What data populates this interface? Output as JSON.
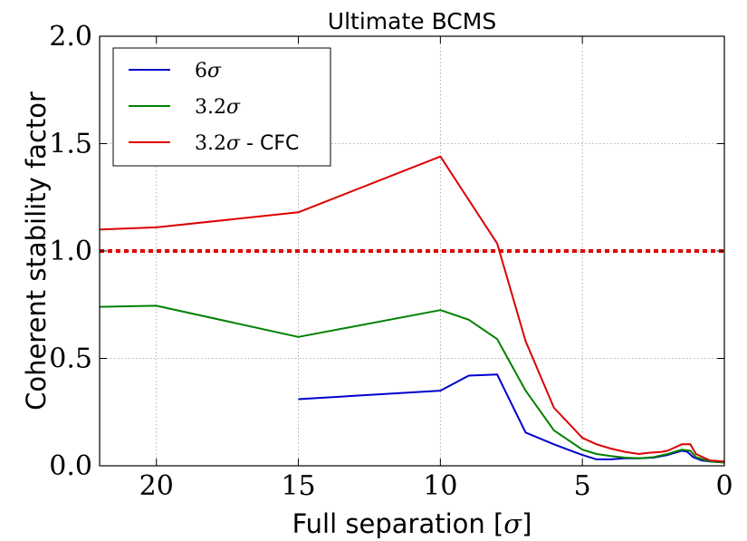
{
  "chart_data": {
    "type": "line",
    "title": "Ultimate BCMS",
    "xlabel": "Full separation [σ]",
    "ylabel": "Coherent stability factor",
    "xlim": [
      22,
      0
    ],
    "ylim": [
      0.0,
      2.0
    ],
    "x_reversed": true,
    "grid": true,
    "legend_position": "top-left",
    "x_ticks": [
      20,
      15,
      10,
      5,
      0
    ],
    "x_tick_labels": [
      "20",
      "15",
      "10",
      "5",
      "0"
    ],
    "y_ticks": [
      0.0,
      0.5,
      1.0,
      1.5,
      2.0
    ],
    "y_tick_labels": [
      "0.0",
      "0.5",
      "1.0",
      "1.5",
      "2.0"
    ],
    "reference_line": {
      "y": 1.0,
      "color": "#dd0000",
      "style": "dotted"
    },
    "series": [
      {
        "name": "6σ",
        "color": "#0000cc",
        "points": [
          [
            15,
            0.31
          ],
          [
            10,
            0.35
          ],
          [
            9,
            0.42
          ],
          [
            8,
            0.425
          ],
          [
            7,
            0.155
          ],
          [
            6,
            0.1
          ],
          [
            5,
            0.05
          ],
          [
            4.5,
            0.03
          ],
          [
            4,
            0.03
          ],
          [
            3.5,
            0.035
          ],
          [
            3,
            0.035
          ],
          [
            2.5,
            0.038
          ],
          [
            2,
            0.05
          ],
          [
            1.5,
            0.07
          ],
          [
            1.3,
            0.065
          ],
          [
            1.1,
            0.04
          ],
          [
            0.8,
            0.025
          ],
          [
            0.5,
            0.02
          ],
          [
            0,
            0.015
          ]
        ]
      },
      {
        "name": "3.2σ",
        "color": "#008000",
        "points": [
          [
            22,
            0.74
          ],
          [
            20,
            0.745
          ],
          [
            15,
            0.6
          ],
          [
            10,
            0.725
          ],
          [
            9,
            0.68
          ],
          [
            8,
            0.59
          ],
          [
            7,
            0.35
          ],
          [
            6,
            0.165
          ],
          [
            5,
            0.075
          ],
          [
            4.5,
            0.055
          ],
          [
            4,
            0.045
          ],
          [
            3.5,
            0.038
          ],
          [
            3,
            0.035
          ],
          [
            2.5,
            0.04
          ],
          [
            2,
            0.055
          ],
          [
            1.5,
            0.075
          ],
          [
            1.2,
            0.07
          ],
          [
            1.0,
            0.04
          ],
          [
            0.5,
            0.02
          ],
          [
            0,
            0.015
          ]
        ]
      },
      {
        "name": "3.2σ - CFC",
        "color": "#dd0000",
        "points": [
          [
            22,
            1.1
          ],
          [
            20,
            1.11
          ],
          [
            15,
            1.18
          ],
          [
            10,
            1.44
          ],
          [
            8,
            1.035
          ],
          [
            7,
            0.58
          ],
          [
            6,
            0.27
          ],
          [
            5,
            0.13
          ],
          [
            4.5,
            0.1
          ],
          [
            4,
            0.08
          ],
          [
            3.5,
            0.065
          ],
          [
            3,
            0.055
          ],
          [
            2.7,
            0.06
          ],
          [
            2.2,
            0.065
          ],
          [
            2,
            0.07
          ],
          [
            1.5,
            0.1
          ],
          [
            1.2,
            0.1
          ],
          [
            1.0,
            0.055
          ],
          [
            0.5,
            0.025
          ],
          [
            0,
            0.02
          ]
        ]
      }
    ]
  }
}
